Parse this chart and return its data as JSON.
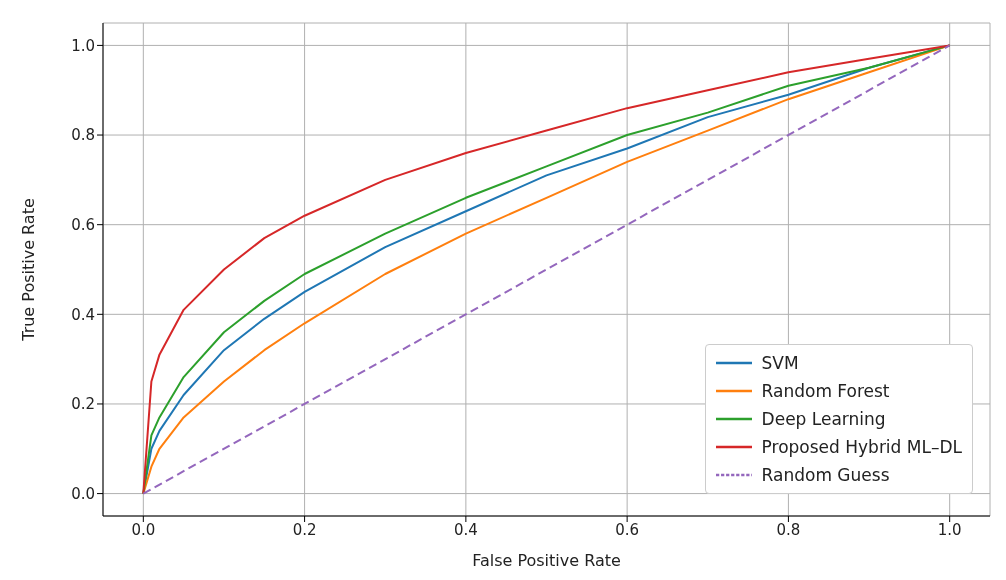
{
  "chart_data": {
    "type": "line",
    "xlabel": "False Positive Rate",
    "ylabel": "True Positive Rate",
    "x": [
      0,
      0.01,
      0.02,
      0.05,
      0.1,
      0.15,
      0.2,
      0.3,
      0.4,
      0.5,
      0.6,
      0.7,
      0.8,
      0.9,
      1
    ],
    "series": [
      {
        "name": "SVM",
        "color": "#1f77b4",
        "values": [
          0,
          0.1,
          0.14,
          0.22,
          0.32,
          0.39,
          0.45,
          0.55,
          0.63,
          0.71,
          0.77,
          0.84,
          0.89,
          0.95,
          1
        ]
      },
      {
        "name": "Random Forest",
        "color": "#ff7f0e",
        "values": [
          0,
          0.06,
          0.1,
          0.17,
          0.25,
          0.32,
          0.38,
          0.49,
          0.58,
          0.66,
          0.74,
          0.81,
          0.88,
          0.94,
          1
        ]
      },
      {
        "name": "Deep Learning",
        "color": "#2ca02c",
        "values": [
          0,
          0.13,
          0.17,
          0.26,
          0.36,
          0.43,
          0.49,
          0.58,
          0.66,
          0.73,
          0.8,
          0.85,
          0.91,
          0.95,
          1
        ]
      },
      {
        "name": "Proposed Hybrid ML–DL",
        "color": "#d62728",
        "values": [
          0,
          0.25,
          0.31,
          0.41,
          0.5,
          0.57,
          0.62,
          0.7,
          0.76,
          0.81,
          0.86,
          0.9,
          0.94,
          0.97,
          1
        ]
      },
      {
        "name": "Random Guess",
        "color": "#9467bd",
        "line_style": "dashed",
        "x": [
          0,
          1
        ],
        "values": [
          0,
          1
        ]
      }
    ],
    "xlim": [
      -0.05,
      1.05
    ],
    "ylim": [
      -0.05,
      1.05
    ],
    "xticks": [
      {
        "value": 0,
        "label": "0.0"
      },
      {
        "value": 0.2,
        "label": "0.2"
      },
      {
        "value": 0.4,
        "label": "0.4"
      },
      {
        "value": 0.6,
        "label": "0.6"
      },
      {
        "value": 0.8,
        "label": "0.8"
      },
      {
        "value": 1,
        "label": "1.0"
      }
    ],
    "yticks": [
      {
        "value": 0,
        "label": "0.0"
      },
      {
        "value": 0.2,
        "label": "0.2"
      },
      {
        "value": 0.4,
        "label": "0.4"
      },
      {
        "value": 0.6,
        "label": "0.6"
      },
      {
        "value": 0.8,
        "label": "0.8"
      },
      {
        "value": 1,
        "label": "1.0"
      }
    ],
    "grid": true,
    "legend": "bottom right",
    "line_style": "solid",
    "marker": "none"
  }
}
